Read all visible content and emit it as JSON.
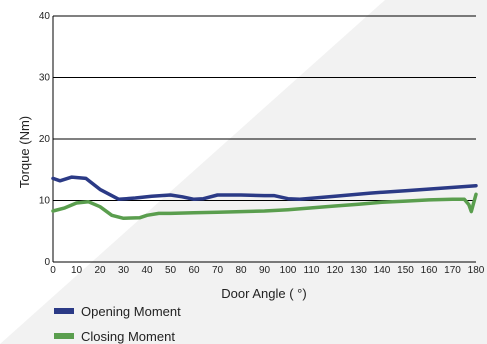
{
  "chart_data": {
    "type": "line",
    "xlabel": "Door Angle ( °)",
    "ylabel": "Torque (Nm)",
    "xlim": [
      0,
      180
    ],
    "ylim": [
      0,
      40
    ],
    "x_ticks": [
      0,
      10,
      20,
      30,
      40,
      50,
      60,
      70,
      80,
      90,
      100,
      110,
      120,
      130,
      140,
      150,
      160,
      170,
      180
    ],
    "y_ticks": [
      0,
      10,
      20,
      30,
      40
    ],
    "grid": "horizontal",
    "legend_position": "bottom-left",
    "series": [
      {
        "name": "Opening Moment",
        "color": "#2b3a86",
        "x": [
          0,
          3,
          8,
          14,
          20,
          28,
          35,
          42,
          50,
          55,
          60,
          64,
          70,
          80,
          90,
          94,
          100,
          105,
          120,
          135,
          150,
          165,
          180
        ],
        "y": [
          13.6,
          13.2,
          13.8,
          13.6,
          11.8,
          10.2,
          10.4,
          10.7,
          10.9,
          10.6,
          10.2,
          10.3,
          10.9,
          10.9,
          10.8,
          10.8,
          10.3,
          10.2,
          10.7,
          11.2,
          11.6,
          12.0,
          12.4
        ]
      },
      {
        "name": "Closing Moment",
        "color": "#5a9e4e",
        "x": [
          0,
          5,
          10,
          15,
          20,
          25,
          30,
          37,
          40,
          45,
          50,
          60,
          70,
          80,
          90,
          100,
          110,
          120,
          130,
          140,
          150,
          160,
          170,
          175,
          177,
          178,
          180
        ],
        "y": [
          8.3,
          8.8,
          9.6,
          9.8,
          9.0,
          7.6,
          7.1,
          7.2,
          7.6,
          7.9,
          7.9,
          8.0,
          8.1,
          8.2,
          8.3,
          8.5,
          8.8,
          9.1,
          9.4,
          9.7,
          9.9,
          10.1,
          10.2,
          10.2,
          9.3,
          8.2,
          11.0
        ]
      }
    ]
  }
}
